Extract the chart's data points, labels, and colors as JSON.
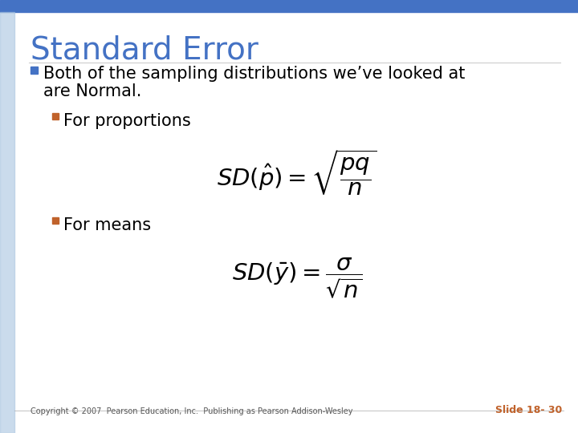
{
  "title": "Standard Error",
  "title_color": "#4472C4",
  "title_fontsize": 28,
  "background_color": "#FFFFFF",
  "top_bar_color": "#4472C4",
  "left_bar_color": "#4472C4",
  "bullet1_color": "#4472C4",
  "bullet2_color": "#C0622B",
  "bullet3_color": "#C0622B",
  "bullet1_line1": "Both of the sampling distributions we’ve looked at",
  "bullet1_line2": "are Normal.",
  "bullet2_text": "For proportions",
  "bullet3_text": "For means",
  "copyright_text": "Copyright © 2007  Pearson Education, Inc.  Publishing as Pearson Addison-Wesley",
  "slide_number": "Slide 18- 30",
  "slide_number_color": "#C0622B",
  "footer_fontsize": 7,
  "text_color": "#000000",
  "body_fontsize": 15
}
